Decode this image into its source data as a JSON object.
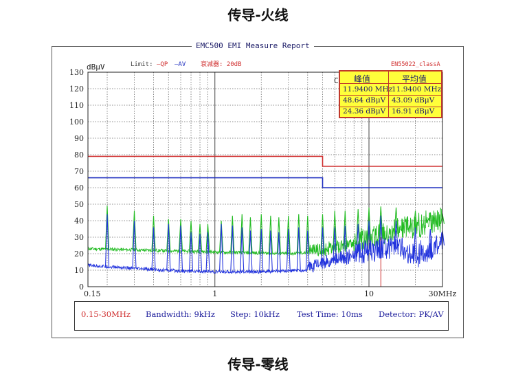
{
  "titles": {
    "top": "传导-火线",
    "bottom": "传导-零线"
  },
  "report": {
    "title": "EMC500 EMI Measure Report",
    "unit_label": "dBμV",
    "limit_label": "Limit:",
    "qp_label": "—QP",
    "av_label": "—AV",
    "attenuator_label": "衰减器: 20dB",
    "standard_label": "EN55022_classA",
    "result_box": {
      "headers": [
        "峰值",
        "平均值"
      ],
      "rows": [
        [
          "11.9400 MHz",
          "11.9400 MHz"
        ],
        [
          "48.64 dBμV",
          "43.09 dBμV"
        ],
        [
          "24.36 dBμV",
          "16.91 dBμV"
        ]
      ],
      "cut_label": "C"
    },
    "bottom_bar": {
      "range": "0.15-30MHz",
      "bandwidth": "Bandwidth: 9kHz",
      "step": "Step: 10kHz",
      "test_time": "Test Time: 10ms",
      "detector": "Detector: PK/AV"
    }
  },
  "chart_data": {
    "type": "line",
    "x_scale": "log",
    "xlim": [
      0.15,
      30
    ],
    "ylim": [
      0,
      130
    ],
    "y_ticks": [
      0,
      10,
      20,
      30,
      40,
      50,
      60,
      70,
      80,
      90,
      100,
      110,
      120,
      130
    ],
    "x_tick_labels": [
      {
        "value": 0.15,
        "label": "0.15"
      },
      {
        "value": 1,
        "label": "1"
      },
      {
        "value": 10,
        "label": "10"
      },
      {
        "value": 30,
        "label": "30MHz"
      }
    ],
    "ylabel": "dBμV",
    "grid": true,
    "limits": [
      {
        "name": "QP",
        "color": "#d03030",
        "segments": [
          {
            "x": [
              0.15,
              5
            ],
            "y": 79
          },
          {
            "x": [
              5,
              30
            ],
            "y": 73
          }
        ]
      },
      {
        "name": "AV",
        "color": "#2030c0",
        "segments": [
          {
            "x": [
              0.15,
              5
            ],
            "y": 66
          },
          {
            "x": [
              5,
              30
            ],
            "y": 60
          }
        ]
      }
    ],
    "marker": {
      "x": 11.94,
      "color": "#d03030"
    },
    "series": [
      {
        "name": "QP",
        "color": "#22bb22",
        "baseline": [
          [
            0.15,
            23
          ],
          [
            0.4,
            22
          ],
          [
            1,
            21
          ],
          [
            3,
            20
          ],
          [
            5,
            21
          ],
          [
            7,
            23
          ],
          [
            10,
            27
          ],
          [
            15,
            32
          ],
          [
            20,
            34
          ],
          [
            30,
            38
          ]
        ],
        "peaks": [
          [
            0.2,
            49
          ],
          [
            0.3,
            46
          ],
          [
            0.4,
            43
          ],
          [
            0.5,
            41
          ],
          [
            0.6,
            41
          ],
          [
            0.7,
            40
          ],
          [
            0.8,
            38
          ],
          [
            0.9,
            38
          ],
          [
            1.1,
            40
          ],
          [
            1.3,
            43
          ],
          [
            1.5,
            44
          ],
          [
            1.7,
            42
          ],
          [
            2.0,
            44
          ],
          [
            2.3,
            43
          ],
          [
            2.6,
            42
          ],
          [
            3.0,
            43
          ],
          [
            3.5,
            44
          ],
          [
            4.0,
            43
          ],
          [
            5.0,
            44
          ],
          [
            6.0,
            46
          ],
          [
            7.0,
            46
          ],
          [
            8.5,
            47
          ],
          [
            10.0,
            48
          ],
          [
            11.94,
            48.64
          ],
          [
            15.0,
            48
          ],
          [
            20.0,
            46
          ],
          [
            25.0,
            45
          ],
          [
            30.0,
            44
          ]
        ]
      },
      {
        "name": "AV",
        "color": "#2233dd",
        "baseline": [
          [
            0.15,
            13
          ],
          [
            0.3,
            11
          ],
          [
            0.6,
            9.5
          ],
          [
            1,
            9
          ],
          [
            2,
            9
          ],
          [
            4,
            10
          ],
          [
            5,
            13
          ],
          [
            7,
            16
          ],
          [
            10,
            19
          ],
          [
            15,
            22
          ],
          [
            20,
            16
          ],
          [
            25,
            20
          ],
          [
            30,
            25
          ]
        ],
        "peaks": [
          [
            0.2,
            44
          ],
          [
            0.3,
            40
          ],
          [
            0.4,
            36
          ],
          [
            0.5,
            38
          ],
          [
            0.6,
            37
          ],
          [
            0.7,
            33
          ],
          [
            0.8,
            32
          ],
          [
            0.9,
            33
          ],
          [
            1.1,
            38
          ],
          [
            1.3,
            37
          ],
          [
            1.5,
            36
          ],
          [
            1.7,
            34
          ],
          [
            2.0,
            35
          ],
          [
            2.3,
            34
          ],
          [
            2.6,
            33
          ],
          [
            3.0,
            35
          ],
          [
            3.5,
            36
          ],
          [
            4.0,
            34
          ],
          [
            5.0,
            36
          ],
          [
            6.0,
            36
          ],
          [
            7.0,
            37
          ],
          [
            8.5,
            38
          ],
          [
            10.0,
            40
          ],
          [
            11.94,
            43.09
          ],
          [
            15.0,
            40
          ],
          [
            20.0,
            36
          ],
          [
            25.0,
            35
          ],
          [
            30.0,
            34
          ]
        ]
      }
    ]
  }
}
